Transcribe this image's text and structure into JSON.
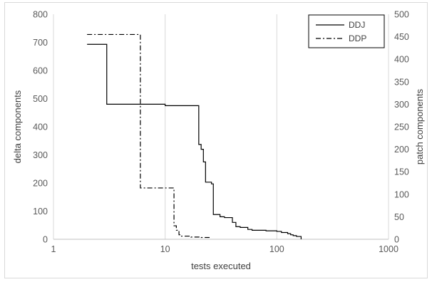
{
  "chart_data": {
    "type": "line",
    "title": "",
    "xlabel": "tests executed",
    "ylabel": "delta components",
    "y2label": "patch components",
    "x_scale": "log",
    "xlim": [
      1,
      1000
    ],
    "ylim": [
      0,
      800
    ],
    "y2lim": [
      0,
      500
    ],
    "x_ticks": [
      1,
      10,
      100,
      1000
    ],
    "x_tick_labels": [
      "1",
      "10",
      "100",
      "1000"
    ],
    "y_ticks": [
      0,
      100,
      200,
      300,
      400,
      500,
      600,
      700,
      800
    ],
    "y_tick_labels": [
      "0",
      "100",
      "200",
      "300",
      "400",
      "500",
      "600",
      "700",
      "800"
    ],
    "y2_ticks": [
      0,
      50,
      100,
      150,
      200,
      250,
      300,
      350,
      400,
      450,
      500
    ],
    "y2_tick_labels": [
      "0",
      "50",
      "100",
      "150",
      "200",
      "250",
      "300",
      "350",
      "400",
      "450",
      "500"
    ],
    "grid": "vertical",
    "legend_position": "top-right",
    "series": [
      {
        "name": "DDJ",
        "axis": "left",
        "style": "solid",
        "color": "#000000",
        "points": [
          [
            2,
            693
          ],
          [
            3,
            693
          ],
          [
            3,
            480
          ],
          [
            10,
            480
          ],
          [
            10,
            475
          ],
          [
            20,
            475
          ],
          [
            20,
            337
          ],
          [
            21,
            337
          ],
          [
            21,
            320
          ],
          [
            22,
            320
          ],
          [
            22,
            275
          ],
          [
            23,
            275
          ],
          [
            23,
            203
          ],
          [
            26,
            203
          ],
          [
            26,
            197
          ],
          [
            27,
            197
          ],
          [
            27,
            88
          ],
          [
            31,
            88
          ],
          [
            31,
            80
          ],
          [
            34,
            80
          ],
          [
            34,
            77
          ],
          [
            40,
            77
          ],
          [
            40,
            60
          ],
          [
            43,
            60
          ],
          [
            43,
            45
          ],
          [
            47,
            45
          ],
          [
            47,
            42
          ],
          [
            55,
            42
          ],
          [
            55,
            35
          ],
          [
            60,
            35
          ],
          [
            60,
            32
          ],
          [
            80,
            32
          ],
          [
            80,
            30
          ],
          [
            100,
            30
          ],
          [
            100,
            28
          ],
          [
            110,
            28
          ],
          [
            110,
            24
          ],
          [
            125,
            24
          ],
          [
            125,
            20
          ],
          [
            133,
            20
          ],
          [
            133,
            16
          ],
          [
            140,
            16
          ],
          [
            140,
            13
          ],
          [
            150,
            13
          ],
          [
            150,
            10
          ],
          [
            165,
            10
          ],
          [
            165,
            0
          ]
        ]
      },
      {
        "name": "DDP",
        "axis": "right",
        "style": "dash-dot",
        "color": "#000000",
        "points": [
          [
            2,
            455
          ],
          [
            6,
            455
          ],
          [
            6,
            114
          ],
          [
            12,
            114
          ],
          [
            12,
            30
          ],
          [
            12.6,
            30
          ],
          [
            12.6,
            20
          ],
          [
            13.3,
            20
          ],
          [
            13.3,
            10
          ],
          [
            14,
            10
          ],
          [
            14,
            7
          ],
          [
            17,
            7
          ],
          [
            17,
            5
          ],
          [
            21,
            5
          ],
          [
            21,
            4
          ],
          [
            25,
            4
          ]
        ]
      }
    ]
  }
}
